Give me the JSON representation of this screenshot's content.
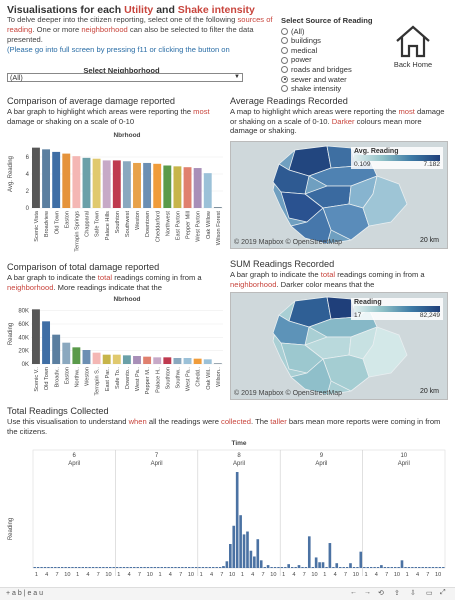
{
  "header": {
    "title_parts": [
      "Visualisations for each ",
      "Utility",
      " and ",
      "Shake intensity"
    ],
    "desc_parts": [
      "To delve deeper into the citizen reporting, select one of the following ",
      "sources of reading",
      ". One or more ",
      "neighborhood",
      " can also be selected to filter the data presented."
    ],
    "note": "(Please go into full screen by pressing f11 or clicking the button on"
  },
  "source_filter": {
    "title": "Select Source of Reading",
    "options": [
      "(All)",
      "buildings",
      "medical",
      "power",
      "roads and bridges",
      "sewer and water",
      "shake intensity"
    ],
    "selected": "sewer and water"
  },
  "home": {
    "label": "Back Home"
  },
  "neighborhood": {
    "label": "Select Neighborhood",
    "value": "(All)"
  },
  "avg_bar": {
    "title": "Comparison of average damage reported",
    "desc_parts": [
      "A bar graph to highlight which areas were reporting the ",
      "most",
      " damage or shaking on a scale of 0-10"
    ],
    "header": "Nbrhood",
    "ylabel": "Avg. Reading",
    "ticks": [
      "0",
      "2",
      "4",
      "6"
    ]
  },
  "avg_map": {
    "title": "Average Readings Recorded",
    "desc_parts": [
      "A map to highlight which areas were reporting the ",
      "most",
      " damage or shaking on a scale of 0-10. ",
      "Darker",
      " colours mean more damage or shaking."
    ],
    "legend_title": "Avg. Reading",
    "legend_min": "0.109",
    "legend_max": "7.182",
    "copyright": "© 2019 Mapbox © OpenStreetMap",
    "scale": "20 km"
  },
  "total_bar": {
    "title": "Comparison of total damage reported",
    "desc_parts": [
      "A bar graph to indicate the ",
      "total",
      " readings coming in from a ",
      "neighborhood",
      ". More readings indicate that the"
    ],
    "header": "Nbrhood",
    "ylabel": "Reading",
    "ticks": [
      "0K",
      "20K",
      "40K",
      "60K",
      "80K"
    ]
  },
  "sum_map": {
    "title": "SUM Readings Recorded",
    "desc_parts": [
      "A bar graph to indicate the ",
      "total",
      " readings coming in from a ",
      "neighborhood",
      ". Darker color means  that the"
    ],
    "legend_title": "Reading",
    "legend_min": "17",
    "legend_max": "82,249",
    "copyright": "© 2019 Mapbox © OpenStreetMap",
    "scale": "20 km"
  },
  "timeline": {
    "title": "Total Readings Collected",
    "desc_parts": [
      "Use this visualisation to understand ",
      "when",
      " all the readings were ",
      "collected",
      ". The ",
      "taller",
      " bars mean more reports were coming in from the citizens."
    ],
    "axis_title": "Time",
    "ylabel": "Reading",
    "days": [
      {
        "num": "6",
        "month": "April"
      },
      {
        "num": "7",
        "month": "April"
      },
      {
        "num": "8",
        "month": "April"
      },
      {
        "num": "9",
        "month": "April"
      },
      {
        "num": "10",
        "month": "April"
      }
    ],
    "hour_labels": [
      "1",
      "4",
      "7",
      "10",
      "1",
      "4",
      "7",
      "10",
      "1",
      "4",
      "7",
      "10",
      "1",
      "4",
      "7",
      "10",
      "1",
      "4",
      "7",
      "10",
      "1",
      "4",
      "7",
      "10",
      "1",
      "4",
      "7",
      "10",
      "1",
      "4",
      "7",
      "10",
      "1",
      "4",
      "7",
      "10",
      "1",
      "4",
      "7",
      "10"
    ]
  },
  "toolbar": {
    "brand": "+ a b | e a u"
  },
  "chart_data": [
    {
      "type": "bar",
      "title": "Comparison of average damage reported",
      "xlabel": "Nbrhood",
      "ylabel": "Avg. Reading",
      "ylim": [
        0,
        8
      ],
      "categories": [
        "Scenic Vista",
        "Broadview",
        "Old Town",
        "Easton",
        "Terrapin Springs",
        "Chapparal",
        "Safe Town",
        "Palace Hills",
        "Southton",
        "Southwest",
        "Weston",
        "Downtown",
        "Cheddarford",
        "Northwest",
        "East Parton",
        "Pepper Mill",
        "West Parton",
        "Oak Willow",
        "Wilson Forest"
      ],
      "values": [
        7.1,
        6.9,
        6.6,
        6.4,
        6.1,
        5.9,
        5.8,
        5.6,
        5.6,
        5.5,
        5.3,
        5.3,
        5.2,
        5.0,
        4.9,
        4.8,
        4.7,
        4.1,
        0.1
      ],
      "colors": [
        "#575757",
        "#5b7fa0",
        "#3f6ea5",
        "#e5933b",
        "#f4b7b4",
        "#6aa0a8",
        "#e0c96e",
        "#c7a9c7",
        "#bf3a4f",
        "#8aa8bf",
        "#e8a24a",
        "#6c8fb3",
        "#f09c3a",
        "#5a9a4a",
        "#c7b54a",
        "#e0806e",
        "#a88fb8",
        "#9bc1d8",
        "#6a7d8a"
      ]
    },
    {
      "type": "bar",
      "title": "Comparison of total damage reported",
      "xlabel": "Nbrhood",
      "ylabel": "Reading",
      "ylim": [
        0,
        90000
      ],
      "categories": [
        "Scenic V..",
        "Old Town",
        "Broadv..",
        "Easton",
        "Northw..",
        "Weston",
        "Terrapin S..",
        "East Par..",
        "Safe To..",
        "Downto..",
        "West Pa..",
        "Pepper M..",
        "Palace H..",
        "Southton",
        "Southw..",
        "West Pa..",
        "Chedd..",
        "Oak Wil..",
        "Wilson.."
      ],
      "values": [
        82000,
        64000,
        44000,
        32000,
        25000,
        21000,
        17000,
        14000,
        14000,
        13000,
        12000,
        11000,
        10000,
        10000,
        9000,
        9000,
        8000,
        7000,
        1000
      ],
      "colors": [
        "#575757",
        "#3f6ea5",
        "#5b7fa0",
        "#8aa8bf",
        "#5a9a4a",
        "#6c8fb3",
        "#f4b7b4",
        "#c7b54a",
        "#e0c96e",
        "#6aa0a8",
        "#a88fb8",
        "#e0806e",
        "#c7a9c7",
        "#bf3a4f",
        "#8aa8bf",
        "#9bc1d8",
        "#f09c3a",
        "#9bc1d8",
        "#6a7d8a"
      ]
    },
    {
      "type": "bar",
      "title": "Total Readings Collected",
      "xlabel": "Time",
      "ylabel": "Reading",
      "x": [
        "April 6",
        "April 7",
        "April 8",
        "April 9",
        "April 10"
      ],
      "spikes": [
        {
          "day": "April 8",
          "hour": 7,
          "value": 2
        },
        {
          "day": "April 8",
          "hour": 8,
          "value": 7
        },
        {
          "day": "April 8",
          "hour": 9,
          "value": 25
        },
        {
          "day": "April 8",
          "hour": 10,
          "value": 44
        },
        {
          "day": "April 8",
          "hour": 11,
          "value": 100
        },
        {
          "day": "April 8",
          "hour": 12,
          "value": 55
        },
        {
          "day": "April 8",
          "hour": 13,
          "value": 35
        },
        {
          "day": "April 8",
          "hour": 14,
          "value": 38
        },
        {
          "day": "April 8",
          "hour": 15,
          "value": 18
        },
        {
          "day": "April 8",
          "hour": 16,
          "value": 12
        },
        {
          "day": "April 8",
          "hour": 17,
          "value": 30
        },
        {
          "day": "April 8",
          "hour": 18,
          "value": 8
        },
        {
          "day": "April 8",
          "hour": 20,
          "value": 3
        },
        {
          "day": "April 9",
          "hour": 2,
          "value": 4
        },
        {
          "day": "April 9",
          "hour": 5,
          "value": 3
        },
        {
          "day": "April 9",
          "hour": 8,
          "value": 33
        },
        {
          "day": "April 9",
          "hour": 10,
          "value": 11
        },
        {
          "day": "April 9",
          "hour": 11,
          "value": 6
        },
        {
          "day": "April 9",
          "hour": 12,
          "value": 6
        },
        {
          "day": "April 9",
          "hour": 14,
          "value": 26
        },
        {
          "day": "April 9",
          "hour": 16,
          "value": 5
        },
        {
          "day": "April 9",
          "hour": 20,
          "value": 5
        },
        {
          "day": "April 9",
          "hour": 23,
          "value": 17
        },
        {
          "day": "April 10",
          "hour": 5,
          "value": 3
        },
        {
          "day": "April 10",
          "hour": 11,
          "value": 8
        }
      ],
      "baseline": 1
    }
  ]
}
